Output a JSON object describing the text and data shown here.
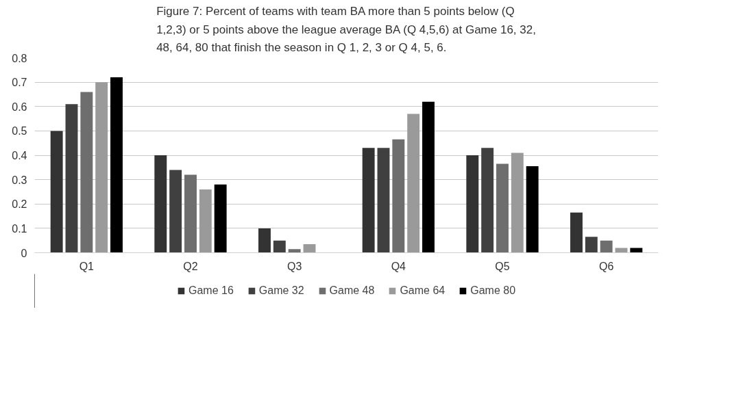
{
  "chart_data": {
    "type": "bar",
    "title": "Figure 7: Percent of teams with team BA more than 5 points below (Q\n1,2,3) or 5 points above the league average BA (Q 4,5,6) at Game 16, 32,\n48, 64, 80 that finish the season in Q 1, 2, 3 or Q 4, 5, 6.",
    "categories": [
      "Q1",
      "Q2",
      "Q3",
      "Q4",
      "Q5",
      "Q6"
    ],
    "series": [
      {
        "name": "Game 16",
        "color": "#333333",
        "values": [
          0.5,
          0.4,
          0.1,
          0.43,
          0.4,
          0.165
        ]
      },
      {
        "name": "Game 32",
        "color": "#404040",
        "values": [
          0.61,
          0.34,
          0.05,
          0.43,
          0.43,
          0.065
        ]
      },
      {
        "name": "Game 48",
        "color": "#6e6e6e",
        "values": [
          0.66,
          0.32,
          0.015,
          0.465,
          0.365,
          0.05
        ]
      },
      {
        "name": "Game 64",
        "color": "#9a9a9a",
        "values": [
          0.7,
          0.26,
          0.035,
          0.57,
          0.41,
          0.02
        ]
      },
      {
        "name": "Game 80",
        "color": "#000000",
        "values": [
          0.72,
          0.28,
          0,
          0.62,
          0.355,
          0.02
        ]
      }
    ],
    "ylim": [
      0,
      0.8
    ],
    "yticks": [
      0,
      0.1,
      0.2,
      0.3,
      0.4,
      0.5,
      0.6,
      0.7,
      0.8
    ],
    "grid": "y",
    "legend": "bottom"
  }
}
